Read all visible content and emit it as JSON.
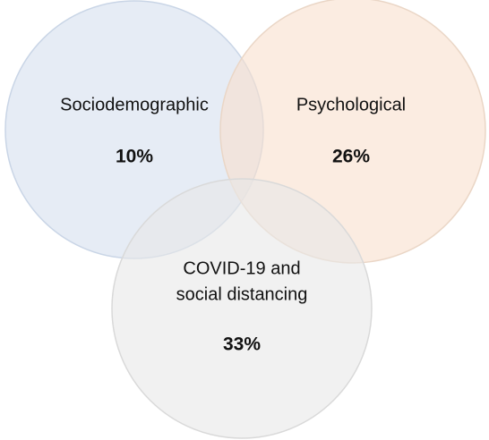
{
  "sets": [
    {
      "label_lines": [
        "Sociodemographic"
      ],
      "value": "10%"
    },
    {
      "label_lines": [
        "Psychological"
      ],
      "value": "26%"
    },
    {
      "label_lines": [
        "COVID-19 and",
        "social distancing"
      ],
      "value": "33%"
    }
  ]
}
